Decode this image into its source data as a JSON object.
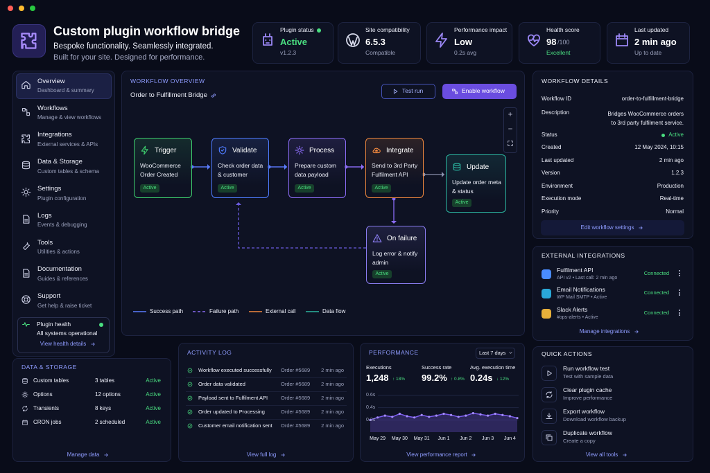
{
  "header": {
    "title": "Custom plugin workflow bridge",
    "tagline": "Bespoke functionality. Seamlessly integrated.",
    "subtitle": "Built for your site. Designed for performance."
  },
  "stats": [
    {
      "label": "Plugin status",
      "value": "Active",
      "sub": "v1.2.3"
    },
    {
      "label": "Site compatibility",
      "value": "6.5.3",
      "sub": "Compatible"
    },
    {
      "label": "Performance impact",
      "value": "Low",
      "sub": "0.2s avg"
    },
    {
      "label": "Health score",
      "value": "98",
      "unit": "/100",
      "sub": "Excellent"
    },
    {
      "label": "Last updated",
      "value": "2 min ago",
      "sub": "Up to date"
    }
  ],
  "nav": [
    {
      "title": "Overview",
      "sub": "Dashboard & summary"
    },
    {
      "title": "Workflows",
      "sub": "Manage & view workflows"
    },
    {
      "title": "Integrations",
      "sub": "External services & APIs"
    },
    {
      "title": "Data & Storage",
      "sub": "Custom tables & schema"
    },
    {
      "title": "Settings",
      "sub": "Plugin configuration"
    },
    {
      "title": "Logs",
      "sub": "Events & debugging"
    },
    {
      "title": "Tools",
      "sub": "Utilities & actions"
    },
    {
      "title": "Documentation",
      "sub": "Guides & references"
    },
    {
      "title": "Support",
      "sub": "Get help & raise ticket"
    }
  ],
  "plugin_health": {
    "title": "Plugin health",
    "status": "All systems operational",
    "link": "View health details"
  },
  "workflow": {
    "heading": "WORKFLOW OVERVIEW",
    "name": "Order to Fulfillment Bridge",
    "test_button": "Test run",
    "enable_button": "Enable workflow",
    "nodes": [
      {
        "title": "Trigger",
        "desc": "WooCommerce Order Created",
        "badge": "Active"
      },
      {
        "title": "Validate",
        "desc": "Check order data & customer",
        "badge": "Active"
      },
      {
        "title": "Process",
        "desc": "Prepare custom data payload",
        "badge": "Active"
      },
      {
        "title": "Integrate",
        "desc": "Send to 3rd Party Fulfilment API",
        "badge": "Active"
      },
      {
        "title": "Update",
        "desc": "Update order meta & status",
        "badge": "Active"
      },
      {
        "title": "On failure",
        "desc": "Log error & notify admin",
        "badge": "Active"
      }
    ],
    "legend": [
      "Success path",
      "Failure path",
      "External call",
      "Data flow"
    ]
  },
  "details": {
    "heading": "WORKFLOW DETAILS",
    "rows": [
      {
        "label": "Workflow ID",
        "value": "order-to-fulfillment-bridge"
      },
      {
        "label": "Description",
        "value": "Bridges WooCommerce orders to 3rd party fulfilment service."
      },
      {
        "label": "Status",
        "value": "Active"
      },
      {
        "label": "Created",
        "value": "12 May 2024, 10:15"
      },
      {
        "label": "Last updated",
        "value": "2 min ago"
      },
      {
        "label": "Version",
        "value": "1.2.3"
      },
      {
        "label": "Environment",
        "value": "Production"
      },
      {
        "label": "Execution mode",
        "value": "Real-time"
      },
      {
        "label": "Priority",
        "value": "Normal"
      }
    ],
    "link": "Edit workflow settings"
  },
  "integrations": {
    "heading": "EXTERNAL INTEGRATIONS",
    "items": [
      {
        "name": "Fulfilment API",
        "meta": "API v2 • Last call: 2 min ago",
        "status": "Connected"
      },
      {
        "name": "Email Notifications",
        "meta": "WP Mail SMTP • Active",
        "status": "Connected"
      },
      {
        "name": "Slack Alerts",
        "meta": "#ops-alerts • Active",
        "status": "Connected"
      }
    ],
    "link": "Manage integrations"
  },
  "storage": {
    "heading": "DATA & STORAGE",
    "rows": [
      {
        "name": "Custom tables",
        "count": "3 tables",
        "status": "Active"
      },
      {
        "name": "Options",
        "count": "12 options",
        "status": "Active"
      },
      {
        "name": "Transients",
        "count": "8 keys",
        "status": "Active"
      },
      {
        "name": "CRON jobs",
        "count": "2 scheduled",
        "status": "Active"
      }
    ],
    "link": "Manage data"
  },
  "activity": {
    "heading": "ACTIVITY LOG",
    "rows": [
      {
        "event": "Workflow executed successfully",
        "order": "Order #5689",
        "time": "2 min ago"
      },
      {
        "event": "Order data validated",
        "order": "Order #5689",
        "time": "2 min ago"
      },
      {
        "event": "Payload sent to Fulfilment API",
        "order": "Order #5689",
        "time": "2 min ago"
      },
      {
        "event": "Order updated to Processing",
        "order": "Order #5689",
        "time": "2 min ago"
      },
      {
        "event": "Customer email notification sent",
        "order": "Order #5689",
        "time": "2 min ago"
      }
    ],
    "link": "View full log"
  },
  "performance": {
    "heading": "PERFORMANCE",
    "range": "Last 7 days",
    "metrics": [
      {
        "label": "Executions",
        "value": "1,248",
        "change": "↑ 18%"
      },
      {
        "label": "Success rate",
        "value": "99.2%",
        "change": "↑ 0.8%"
      },
      {
        "label": "Avg. execution time",
        "value": "0.24s",
        "change": "↓ 12%"
      }
    ],
    "chart": {
      "type": "area",
      "color": "#7c5cf0",
      "x": [
        null,
        "May 29",
        null,
        null,
        "May 30",
        null,
        null,
        "May 31",
        null,
        null,
        "Jun 1",
        null,
        null,
        "Jun 2",
        null,
        null,
        "Jun 3",
        null,
        null,
        "Jun 4",
        null
      ],
      "values": [
        0.2,
        0.24,
        0.27,
        0.25,
        0.3,
        0.26,
        0.24,
        0.28,
        0.25,
        0.27,
        0.3,
        0.28,
        0.25,
        0.27,
        0.31,
        0.29,
        0.27,
        0.3,
        0.28,
        0.26,
        0.23
      ],
      "ylim": [
        0,
        0.6
      ],
      "yticks": [
        {
          "value": 0.2,
          "label": "0.2s"
        },
        {
          "value": 0.4,
          "label": "0.4s"
        },
        {
          "value": 0.6,
          "label": "0.6s"
        }
      ]
    },
    "link": "View performance report"
  },
  "quick_actions": {
    "heading": "QUICK ACTIONS",
    "items": [
      {
        "title": "Run workflow test",
        "sub": "Test with sample data"
      },
      {
        "title": "Clear plugin cache",
        "sub": "Improve performance"
      },
      {
        "title": "Export workflow",
        "sub": "Download workflow backup"
      },
      {
        "title": "Duplicate workflow",
        "sub": "Create a copy"
      }
    ],
    "link": "View all tools"
  }
}
